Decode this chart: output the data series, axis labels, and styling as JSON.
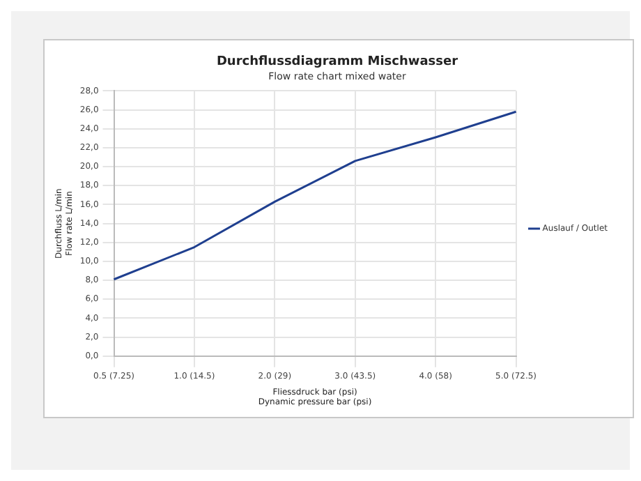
{
  "chart_data": {
    "type": "line",
    "title": "Durchflussdiagramm Mischwasser",
    "subtitle": "Flow rate chart mixed water",
    "xlabel": "Fliessdruck bar (psi)\nDynamic pressure bar (psi)",
    "ylabel": "Durchfluss L/min\nFlow rate L/min",
    "categories": [
      "0.5 (7.25)",
      "1.0 (14.5)",
      "2.0 (29)",
      "3.0 (43.5)",
      "4.0 (58)",
      "5.0 (72.5)"
    ],
    "series": [
      {
        "name": "Auslauf / Outlet",
        "color": "#1f3f8f",
        "values": [
          8.1,
          11.5,
          16.3,
          20.6,
          23.1,
          25.8
        ]
      }
    ],
    "ylim": [
      0,
      28
    ],
    "yticks": [
      {
        "value": 0,
        "label": "0,0"
      },
      {
        "value": 2,
        "label": "2,0"
      },
      {
        "value": 4,
        "label": "4,0"
      },
      {
        "value": 6,
        "label": "6,0"
      },
      {
        "value": 8,
        "label": "8,0"
      },
      {
        "value": 10,
        "label": "10,0"
      },
      {
        "value": 12,
        "label": "12,0"
      },
      {
        "value": 14,
        "label": "14,0"
      },
      {
        "value": 16,
        "label": "16,0"
      },
      {
        "value": 18,
        "label": "18,0"
      },
      {
        "value": 20,
        "label": "20,0"
      },
      {
        "value": 22,
        "label": "22,0"
      },
      {
        "value": 24,
        "label": "24,0"
      },
      {
        "value": 26,
        "label": "26,0"
      },
      {
        "value": 28,
        "label": "28,0"
      }
    ],
    "grid": true,
    "legend": "right",
    "marker": "none",
    "line_style": "solid"
  }
}
